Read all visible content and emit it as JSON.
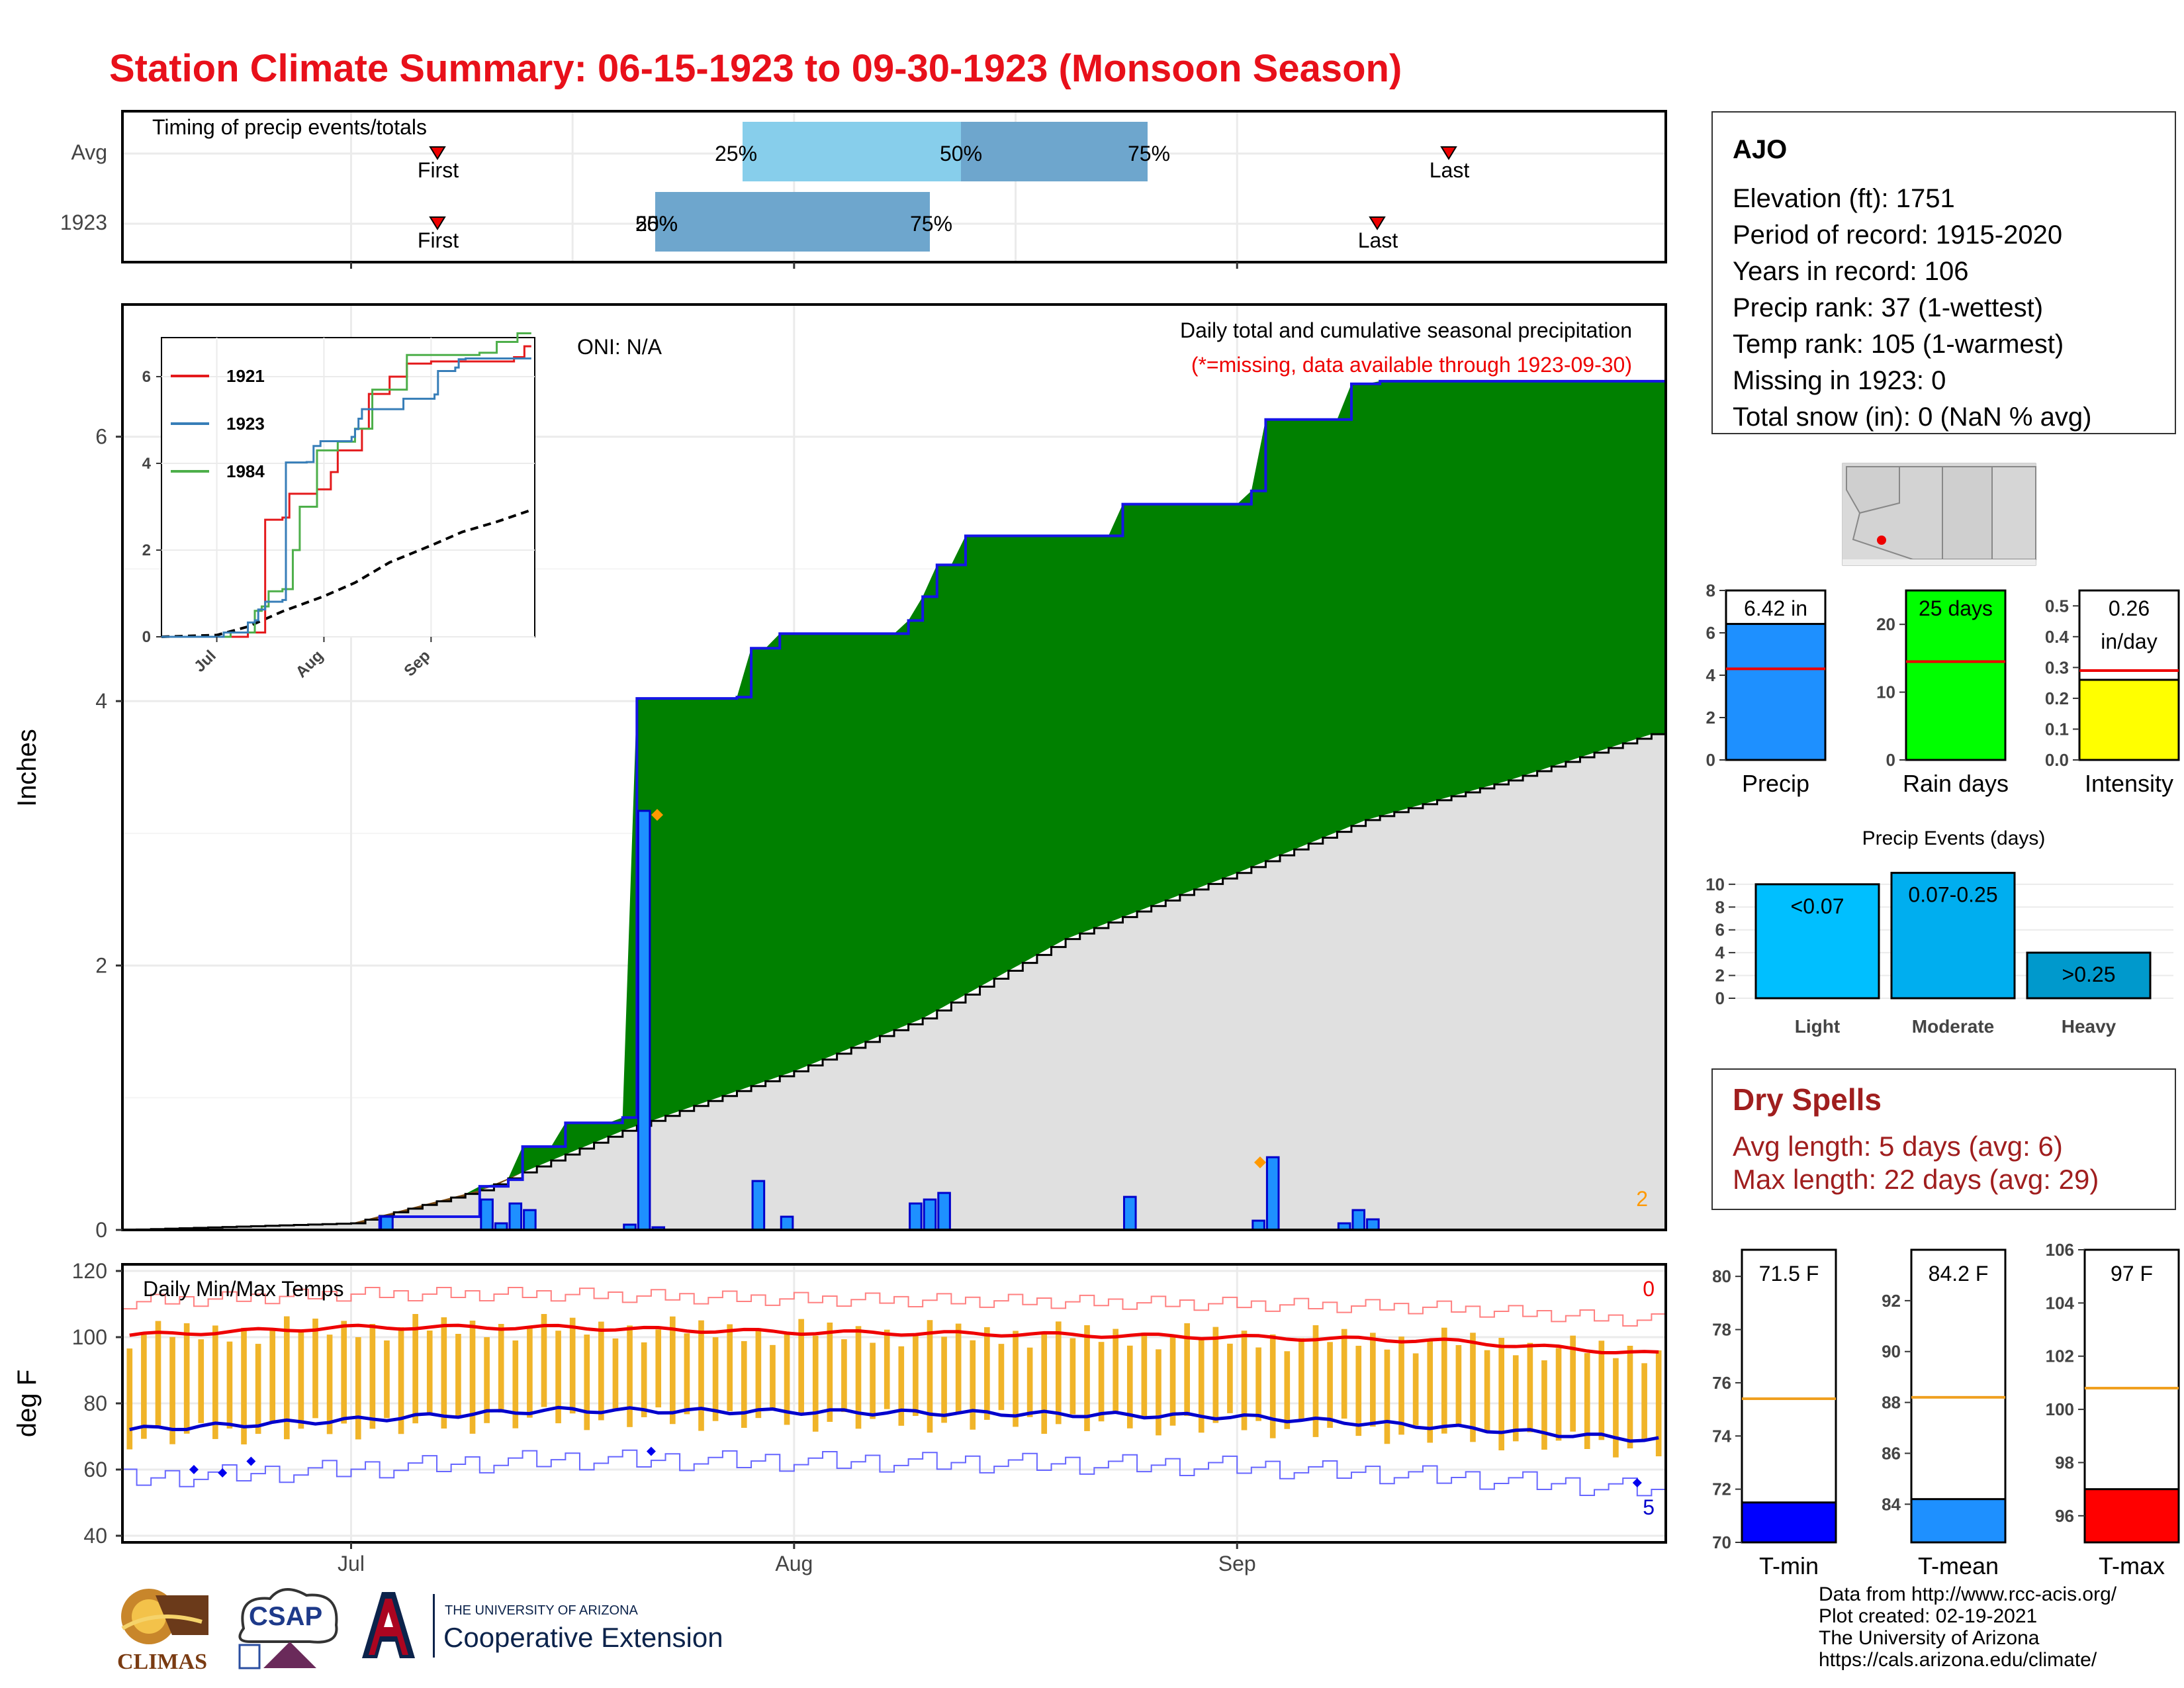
{
  "title": "Station Climate Summary: 06-15-1923 to 09-30-1923 (Monsoon Season)",
  "timing": {
    "title": "Timing of precip events/totals",
    "rows": [
      {
        "label": "Avg",
        "first_label": "First",
        "last_label": "Last"
      },
      {
        "label": "1923",
        "first_label": "First",
        "last_label": "Last"
      }
    ],
    "pct_labels": [
      "25%",
      "50%",
      "75%"
    ]
  },
  "precip_panel": {
    "title": "Daily total and cumulative seasonal precipitation",
    "subtitle": "(*=missing, data available through 1923-09-30)",
    "oni": "ONI: N/A",
    "ylabel": "Inches",
    "corner_count": "2"
  },
  "temp_panel": {
    "title": "Daily Min/Max Temps",
    "ylabel": "deg F",
    "count_top": "0",
    "count_bottom": "5"
  },
  "x_ticks": [
    "Jul",
    "Aug",
    "Sep"
  ],
  "inset": {
    "legend": [
      {
        "name": "1921",
        "color": "#e41a1c"
      },
      {
        "name": "1923",
        "color": "#377eb8"
      },
      {
        "name": "1984",
        "color": "#4daf4a"
      }
    ],
    "yticks": [
      "0",
      "2",
      "4",
      "6"
    ],
    "xticks": [
      "Jul",
      "Aug",
      "Sep"
    ]
  },
  "station": {
    "name": "AJO",
    "lines": [
      "Elevation (ft): 1751",
      "Period of record: 1915-2020",
      "Years in record: 106",
      "Precip rank: 37 (1-wettest)",
      "Temp rank: 105 (1-warmest)",
      "Missing in 1923: 0",
      "Total snow (in): 0 (NaN % avg)"
    ]
  },
  "summary_bars": [
    {
      "label": "Precip",
      "value_text": "6.42 in",
      "value": 6.42,
      "avg": 4.3,
      "ymax": 8,
      "ticks": [
        "0",
        "2",
        "4",
        "6",
        "8"
      ],
      "color": "#1e90ff"
    },
    {
      "label": "Rain days",
      "value_text": "25 days",
      "value": 25,
      "avg": 14.5,
      "ymax": 25,
      "ticks": [
        "0",
        "10",
        "20"
      ],
      "color": "#00ff00"
    },
    {
      "label": "Intensity",
      "value_text": "0.26\nin/day",
      "value": 0.26,
      "avg": 0.29,
      "ymax": 0.55,
      "ticks": [
        "0.0",
        "0.1",
        "0.2",
        "0.3",
        "0.4",
        "0.5"
      ],
      "color": "#ffff00"
    }
  ],
  "precip_events": {
    "title": "Precip Events (days)",
    "ticks": [
      "0",
      "2",
      "4",
      "6",
      "8",
      "10"
    ],
    "bars": [
      {
        "category": "Light",
        "label": "<0.07",
        "value": 10,
        "color": "#00bfff"
      },
      {
        "category": "Moderate",
        "label": "0.07-0.25",
        "value": 11,
        "color": "#00aeef"
      },
      {
        "category": "Heavy",
        "label": ">0.25",
        "value": 4,
        "color": "#0099cc"
      }
    ]
  },
  "dry_spells": {
    "title": "Dry Spells",
    "avg_length": "Avg length: 5 days (avg: 6)",
    "max_length": "Max length: 22 days (avg: 29)"
  },
  "temp_bars": [
    {
      "label": "T-min",
      "value_text": "71.5 F",
      "value": 71.5,
      "avg": 75.4,
      "ymin": 70,
      "ymax": 81,
      "ticks": [
        "70",
        "72",
        "74",
        "76",
        "78",
        "80"
      ],
      "color": "#0000ff"
    },
    {
      "label": "T-mean",
      "value_text": "84.2 F",
      "value": 84.2,
      "avg": 88.2,
      "ymin": 82.5,
      "ymax": 94,
      "ticks": [
        "84",
        "86",
        "88",
        "90",
        "92"
      ],
      "color": "#1e90ff"
    },
    {
      "label": "T-max",
      "value_text": "97 F",
      "value": 97,
      "avg": 100.8,
      "ymin": 95,
      "ymax": 106,
      "ticks": [
        "96",
        "98",
        "100",
        "102",
        "104",
        "106"
      ],
      "color": "#ff0000"
    }
  ],
  "credits": [
    "Data from http://www.rcc-acis.org/",
    "Plot created: 02-19-2021",
    "The University of Arizona",
    "https://cals.arizona.edu/climate/"
  ],
  "logos": {
    "climas": "CLIMAS",
    "csap": "CSAP",
    "ua_line1": "THE UNIVERSITY OF ARIZONA",
    "ua_line2": "Cooperative Extension"
  },
  "chart_data": [
    {
      "type": "area",
      "title": "Daily total and cumulative seasonal precipitation",
      "ylabel": "Inches",
      "ylim": [
        0,
        7
      ],
      "x_range": [
        "1923-06-15",
        "1923-09-30"
      ],
      "cumulative_1923": [
        [
          "1923-06-15",
          0.0
        ],
        [
          "1923-07-03",
          0.1
        ],
        [
          "1923-07-10",
          0.33
        ],
        [
          "1923-07-12",
          0.38
        ],
        [
          "1923-07-13",
          0.63
        ],
        [
          "1923-07-15",
          0.81
        ],
        [
          "1923-07-20",
          0.85
        ],
        [
          "1923-07-21",
          4.02
        ],
        [
          "1923-07-27",
          4.03
        ],
        [
          "1923-07-29",
          4.4
        ],
        [
          "1923-07-31",
          4.51
        ],
        [
          "1923-08-09",
          4.61
        ],
        [
          "1923-08-10",
          4.79
        ],
        [
          "1923-08-11",
          5.03
        ],
        [
          "1923-08-12",
          5.25
        ],
        [
          "1923-08-24",
          5.49
        ],
        [
          "1923-09-02",
          5.59
        ],
        [
          "1923-09-03",
          6.13
        ],
        [
          "1923-09-08",
          6.21
        ],
        [
          "1923-09-09",
          6.4
        ],
        [
          "1923-09-11",
          6.42
        ],
        [
          "1923-09-30",
          6.42
        ]
      ],
      "daily_1923": [
        [
          "1923-07-03",
          0.1
        ],
        [
          "1923-07-10",
          0.23
        ],
        [
          "1923-07-11",
          0.05
        ],
        [
          "1923-07-12",
          0.2
        ],
        [
          "1923-07-13",
          0.15
        ],
        [
          "1923-07-20",
          0.04
        ],
        [
          "1923-07-21",
          3.17
        ],
        [
          "1923-07-22",
          0.02
        ],
        [
          "1923-07-29",
          0.37
        ],
        [
          "1923-07-31",
          0.1
        ],
        [
          "1923-08-09",
          0.2
        ],
        [
          "1923-08-10",
          0.23
        ],
        [
          "1923-08-11",
          0.28
        ],
        [
          "1923-08-24",
          0.25
        ],
        [
          "1923-09-02",
          0.07
        ],
        [
          "1923-09-03",
          0.55
        ],
        [
          "1923-09-08",
          0.05
        ],
        [
          "1923-09-09",
          0.15
        ],
        [
          "1923-09-10",
          0.08
        ]
      ],
      "average_cumulative": [
        [
          "1923-06-15",
          0.0
        ],
        [
          "1923-07-01",
          0.05
        ],
        [
          "1923-07-10",
          0.3
        ],
        [
          "1923-07-20",
          0.75
        ],
        [
          "1923-08-01",
          1.2
        ],
        [
          "1923-08-10",
          1.6
        ],
        [
          "1923-08-20",
          2.2
        ],
        [
          "1923-09-01",
          2.7
        ],
        [
          "1923-09-10",
          3.1
        ],
        [
          "1923-09-20",
          3.4
        ],
        [
          "1923-09-30",
          3.75
        ]
      ]
    },
    {
      "type": "line",
      "title": "Daily Min/Max Temps",
      "ylabel": "deg F",
      "ylim": [
        38,
        122
      ],
      "avg_max": [
        [
          "1923-06-15",
          100.5
        ],
        [
          "1923-07-01",
          103
        ],
        [
          "1923-07-15",
          103
        ],
        [
          "1923-08-01",
          101.5
        ],
        [
          "1923-08-15",
          101
        ],
        [
          "1923-09-01",
          100
        ],
        [
          "1923-09-15",
          99
        ],
        [
          "1923-09-30",
          95
        ]
      ],
      "avg_min": [
        [
          "1923-06-15",
          72
        ],
        [
          "1923-07-01",
          75
        ],
        [
          "1923-07-15",
          78
        ],
        [
          "1923-08-01",
          77.5
        ],
        [
          "1923-08-15",
          77
        ],
        [
          "1923-09-01",
          76
        ],
        [
          "1923-09-15",
          73
        ],
        [
          "1923-09-30",
          69
        ]
      ]
    }
  ]
}
